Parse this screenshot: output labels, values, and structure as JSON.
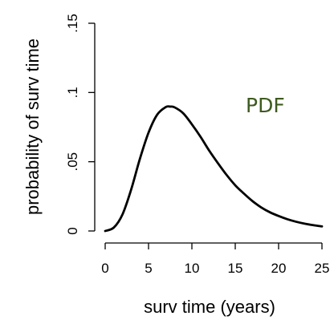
{
  "chart_data": {
    "type": "line",
    "xlabel": "surv time (years)",
    "ylabel": "probability of surv time",
    "xlim": [
      0,
      25
    ],
    "ylim": [
      0,
      0.15
    ],
    "x_ticks": [
      0,
      5,
      10,
      15,
      20,
      25
    ],
    "x_tick_labels": [
      "0",
      "5",
      "10",
      "15",
      "20",
      "25"
    ],
    "y_ticks": [
      0,
      0.05,
      0.1,
      0.15
    ],
    "y_tick_labels": [
      "0",
      ".05",
      ".1",
      ".15"
    ],
    "grid": false,
    "annotation": {
      "text": "PDF",
      "color": "#3d5a1e"
    },
    "series": [
      {
        "color": "#000000",
        "x": [
          0,
          1,
          2,
          3,
          4,
          5,
          6,
          7,
          7.5,
          8,
          9,
          10,
          11,
          12,
          13,
          14,
          15,
          16,
          17,
          18,
          19,
          20,
          21,
          22,
          23,
          24,
          25
        ],
        "y": [
          0,
          0.0025,
          0.012,
          0.03,
          0.052,
          0.071,
          0.084,
          0.0895,
          0.0898,
          0.0893,
          0.085,
          0.077,
          0.068,
          0.058,
          0.049,
          0.0405,
          0.033,
          0.027,
          0.0215,
          0.017,
          0.0135,
          0.0108,
          0.0085,
          0.0067,
          0.0053,
          0.0042,
          0.0033
        ]
      }
    ]
  }
}
